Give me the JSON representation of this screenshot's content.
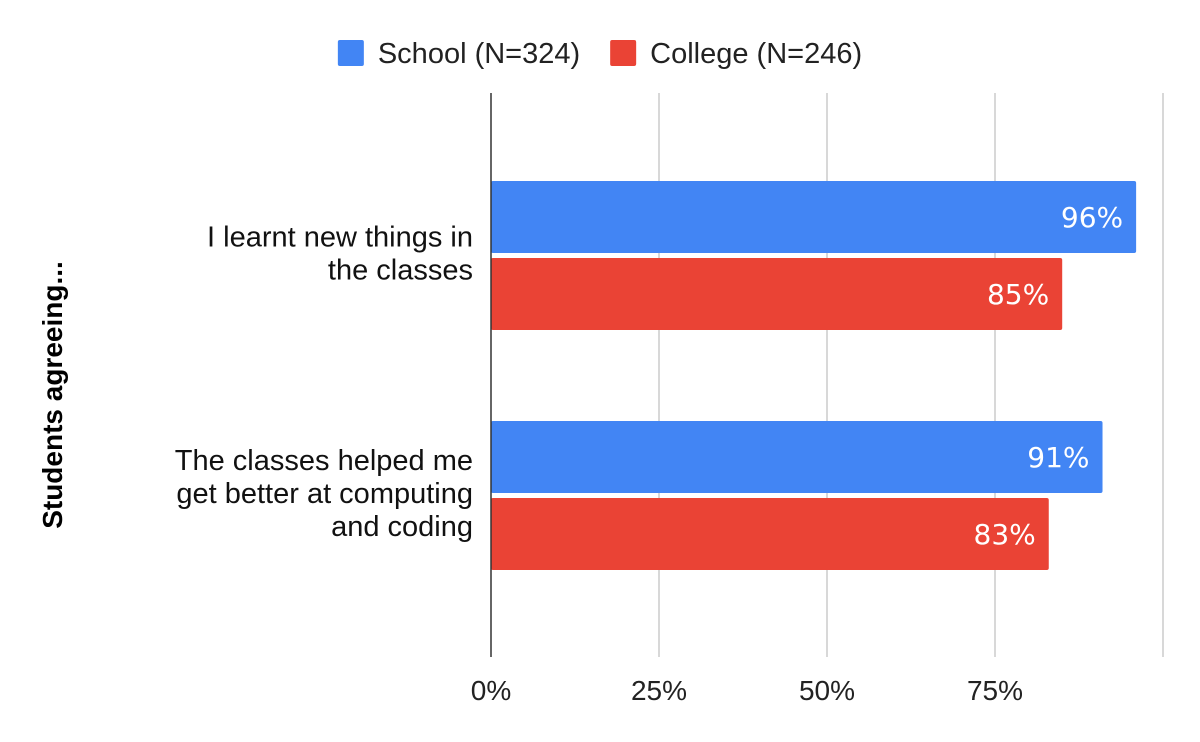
{
  "colors": {
    "series_0": "#4285f4",
    "series_1": "#ea4335",
    "grid": "#cccccc",
    "axis": "#333333"
  },
  "chart_data": {
    "type": "bar",
    "orientation": "horizontal",
    "ylabel": "Students agreeing...",
    "xlabel": "",
    "xlim": [
      0,
      100
    ],
    "x_ticks": [
      "0%",
      "25%",
      "50%",
      "75%"
    ],
    "grid": true,
    "legend_position": "top",
    "categories": [
      [
        "I learnt new things in",
        "the classes"
      ],
      [
        "The classes helped me",
        "get better at computing",
        "and coding"
      ]
    ],
    "series": [
      {
        "name": "School (N=324)",
        "values": [
          96,
          91
        ],
        "labels": [
          "96%",
          "91%"
        ]
      },
      {
        "name": "College (N=246)",
        "values": [
          85,
          83
        ],
        "labels": [
          "85%",
          "83%"
        ]
      }
    ]
  }
}
